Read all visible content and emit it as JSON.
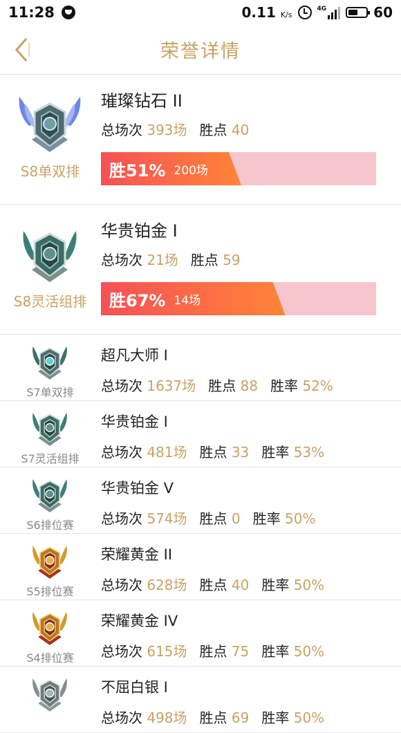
{
  "status_bar": {
    "time": "11:28",
    "speed": "0.11",
    "speed_unit": "K/s",
    "network": "4G",
    "battery": "60"
  },
  "header": {
    "title": "荣誉详情"
  },
  "labels": {
    "total": "总场次",
    "points": "胜点",
    "winrate": "胜率"
  },
  "colors": {
    "accent": "#c8a265",
    "bar_start": "#f65156",
    "bar_end": "#ff8438",
    "bar_track": "#f7c6cc"
  },
  "featured": [
    {
      "season": "S8单双排",
      "rank": "璀璨钻石 II",
      "games": "393场",
      "points": "40",
      "win_label": "胜51%",
      "win_games": "200场",
      "win_fraction": 0.51,
      "badge_icon": "diamond-badge-icon"
    },
    {
      "season": "S8灵活组排",
      "rank": "华贵铂金 I",
      "games": "21场",
      "points": "59",
      "win_label": "胜67%",
      "win_games": "14场",
      "win_fraction": 0.67,
      "badge_icon": "platinum-badge-icon"
    }
  ],
  "history": [
    {
      "season": "S7单双排",
      "rank": "超凡大师 I",
      "games": "1637场",
      "points": "88",
      "winrate": "52%",
      "badge_icon": "master-badge-icon"
    },
    {
      "season": "S7灵活组排",
      "rank": "华贵铂金 I",
      "games": "481场",
      "points": "33",
      "winrate": "53%",
      "badge_icon": "platinum-badge-icon"
    },
    {
      "season": "S6排位赛",
      "rank": "华贵铂金 V",
      "games": "574场",
      "points": "0",
      "winrate": "50%",
      "badge_icon": "platinum-badge-icon"
    },
    {
      "season": "S5排位赛",
      "rank": "荣耀黄金 II",
      "games": "628场",
      "points": "40",
      "winrate": "50%",
      "badge_icon": "gold-badge-icon"
    },
    {
      "season": "S4排位赛",
      "rank": "荣耀黄金 IV",
      "games": "615场",
      "points": "75",
      "winrate": "50%",
      "badge_icon": "gold-badge-icon"
    },
    {
      "season": "",
      "rank": "不屈白银 I",
      "games": "498场",
      "points": "69",
      "winrate": "50%",
      "badge_icon": "silver-badge-icon"
    }
  ]
}
